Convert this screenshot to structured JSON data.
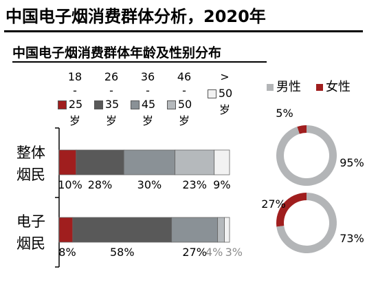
{
  "title": "中国电子烟消费群体分析，2020年",
  "subtitle": "中国电子烟消费群体年龄及性别分布",
  "colors": {
    "age_series": [
      "#a01e1e",
      "#595959",
      "#8a9196",
      "#b5b9bc",
      "#f2f2f2"
    ],
    "male": "#b3b5b7",
    "female": "#a01e1e"
  },
  "chart_data": [
    {
      "type": "bar",
      "orientation": "horizontal-stacked-100",
      "categories": [
        "整体烟民",
        "电子烟民"
      ],
      "category_lines": [
        [
          "整体",
          "烟民"
        ],
        [
          "电子",
          "烟民"
        ]
      ],
      "legend_placement": "top",
      "series": [
        {
          "name": "18-25岁",
          "range_low": "18",
          "range_high": "25",
          "unit": "岁",
          "values": [
            10,
            8
          ],
          "labels": [
            "10%",
            "8%"
          ]
        },
        {
          "name": "26-35岁",
          "range_low": "26",
          "range_high": "35",
          "unit": "岁",
          "values": [
            28,
            58
          ],
          "labels": [
            "28%",
            "58%"
          ]
        },
        {
          "name": "36-45岁",
          "range_low": "36",
          "range_high": "45",
          "unit": "岁",
          "values": [
            30,
            27
          ],
          "labels": [
            "30%",
            "27%"
          ]
        },
        {
          "name": "46-50岁",
          "range_low": "46",
          "range_high": "50",
          "unit": "岁",
          "values": [
            23,
            4
          ],
          "labels": [
            "23%",
            "4%"
          ]
        },
        {
          "name": ">50岁",
          "range_low": ">",
          "range_high": "50",
          "unit": "岁",
          "values": [
            9,
            3
          ],
          "labels": [
            "9%",
            "3%"
          ]
        }
      ]
    },
    {
      "type": "pie",
      "style": "donut",
      "legend": [
        "男性",
        "女性"
      ],
      "legend_placement": "top-right",
      "charts": [
        {
          "category": "整体烟民",
          "male": 95,
          "female": 5,
          "male_label": "95%",
          "female_label": "5%"
        },
        {
          "category": "电子烟民",
          "male": 73,
          "female": 27,
          "male_label": "73%",
          "female_label": "27%"
        }
      ]
    }
  ]
}
